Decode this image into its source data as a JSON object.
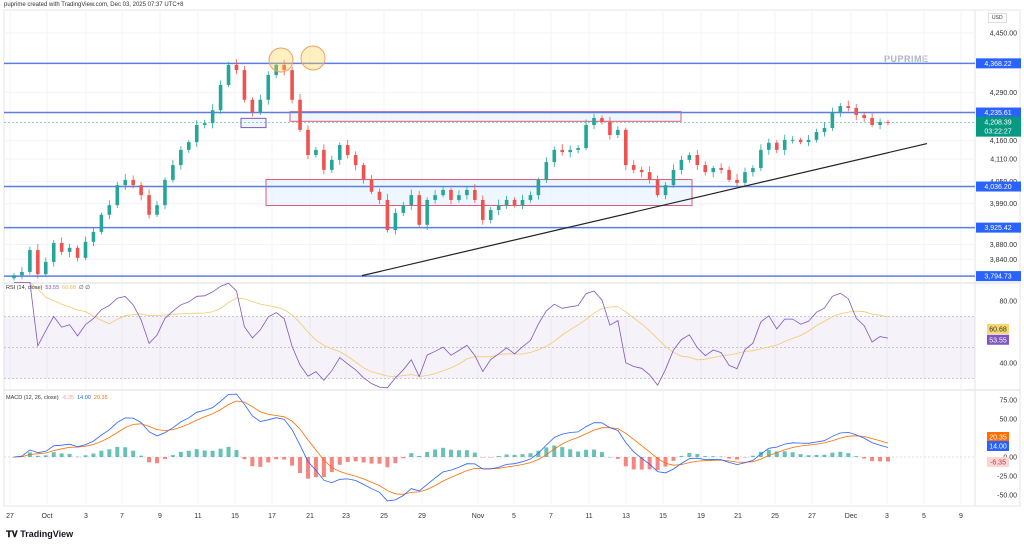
{
  "header": "puprime created with TradingView.com, Dec 03, 2025 07:37 UTC+8",
  "currency": "USD",
  "watermark": "PUPRIME",
  "footer_logo": "TradingView",
  "colors": {
    "up": "#26a69a",
    "down": "#ef5350",
    "level": "#5b7fe0",
    "rsi": "#7e57c2",
    "rsi_ma": "#f5c96a",
    "macd": "#2962ff",
    "signal": "#ff6d00"
  },
  "chart_data": [
    {
      "type": "candlestick",
      "symbol_pane": "price",
      "ylim": [
        3790,
        4470
      ],
      "y_ticks": [
        "4,450.00",
        "4,290.00",
        "4,160.00",
        "4,110.00",
        "4,050.00",
        "3,990.00",
        "3,880.00",
        "3,840.00"
      ],
      "y_tick_values": [
        4450,
        4290,
        4160,
        4110,
        4050,
        3990,
        3880,
        3840
      ],
      "x_ticks": [
        "27",
        "Oct",
        "3",
        "7",
        "9",
        "11",
        "15",
        "17",
        "21",
        "23",
        "25",
        "29",
        "Nov",
        "5",
        "7",
        "11",
        "13",
        "15",
        "19",
        "21",
        "25",
        "27",
        "Dec",
        "3",
        "5",
        "9"
      ],
      "closes": [
        3797,
        3806,
        3865,
        3800,
        3833,
        3884,
        3860,
        3871,
        3844,
        3887,
        3914,
        3960,
        3986,
        4040,
        4054,
        4040,
        4013,
        3960,
        3986,
        4054,
        4094,
        4135,
        4156,
        4202,
        4207,
        4242,
        4310,
        4364,
        4350,
        4270,
        4237,
        4270,
        4337,
        4364,
        4350,
        4270,
        4189,
        4121,
        4135,
        4081,
        4108,
        4148,
        4121,
        4094,
        4054,
        4022,
        4000,
        3919,
        3965,
        3986,
        4013,
        3933,
        4000,
        4013,
        4027,
        4000,
        4013,
        4027,
        4000,
        3946,
        3973,
        3986,
        4000,
        3986,
        4000,
        4013,
        4054,
        4102,
        4135,
        4129,
        4135,
        4140,
        4202,
        4221,
        4210,
        4175,
        4189,
        4094,
        4081,
        4075,
        4054,
        4013,
        4040,
        4081,
        4108,
        4121,
        4094,
        4075,
        4086,
        4081,
        4054,
        4046,
        4075,
        4086,
        4135,
        4154,
        4135,
        4162,
        4162,
        4156,
        4162,
        4183,
        4194,
        4237,
        4253,
        4248,
        4229,
        4221,
        4202,
        4210,
        4208.39
      ],
      "levels": [
        {
          "value": 4368.22,
          "label": "4,368.22"
        },
        {
          "value": 4235.61,
          "label": "4,235.61"
        },
        {
          "value": 4036.2,
          "label": "4,036.20"
        },
        {
          "value": 3925.42,
          "label": "3,925.42"
        },
        {
          "value": 3794.73,
          "label": "3,794.73"
        }
      ],
      "last_price": {
        "value": 4208.39,
        "label": "4,208.39",
        "countdown": "03:22:27"
      },
      "zones": [
        {
          "from": 4212,
          "to": 4238,
          "color": "#e05a7a"
        },
        {
          "from": 3985,
          "to": 4055,
          "color": "#e05a7a"
        },
        {
          "from": 4195,
          "to": 4220,
          "color": "#7e57c2"
        }
      ],
      "trendline": {
        "from": 3796,
        "to": 4152
      }
    },
    {
      "type": "line",
      "pane": "RSI",
      "legend": "RSI (14, close)",
      "values_shown": [
        "53.55",
        "60.68"
      ],
      "extra": "∅ ∅",
      "ylim": [
        24,
        92
      ],
      "y_ticks": [
        "80.00",
        "40.00"
      ],
      "bands": [
        70,
        50,
        30
      ],
      "last": {
        "rsi": "53.55",
        "ma": "60.68"
      }
    },
    {
      "type": "line+bar",
      "pane": "MACD",
      "legend": "MACD (12, 26, close)",
      "values_shown": [
        "-6.35",
        "14.00",
        "20.35"
      ],
      "ylim": [
        -62,
        90
      ],
      "y_ticks": [
        "75.00",
        "50.00",
        "0.00",
        "-25.00",
        "-50.00"
      ],
      "y_tick_values": [
        75,
        50,
        0,
        -25,
        -50
      ],
      "last": {
        "hist": "-6.35",
        "macd": "14.00",
        "signal": "20.35"
      }
    }
  ]
}
